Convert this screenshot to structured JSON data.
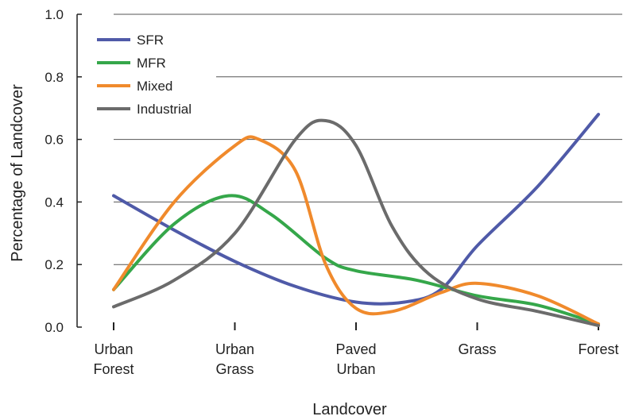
{
  "chart_data": {
    "type": "line",
    "title": "",
    "xlabel": "Landcover",
    "ylabel": "Percentage of Landcover",
    "categories": [
      [
        "Urban",
        "Forest"
      ],
      [
        "Urban",
        "Grass"
      ],
      [
        "Paved",
        "Urban"
      ],
      [
        "Grass"
      ],
      [
        "Forest"
      ]
    ],
    "ylim": [
      0,
      1.0
    ],
    "yticks": [
      "0.0",
      "0.2",
      "0.4",
      "0.6",
      "0.8",
      "1.0"
    ],
    "grid": "horizontal",
    "legend_position": "top-left",
    "series": [
      {
        "name": "SFR",
        "color": "#4f5aa8",
        "points": [
          [
            0,
            0.42
          ],
          [
            0.5,
            0.31
          ],
          [
            1,
            0.21
          ],
          [
            1.5,
            0.13
          ],
          [
            2,
            0.08
          ],
          [
            2.4,
            0.08
          ],
          [
            2.7,
            0.12
          ],
          [
            3,
            0.26
          ],
          [
            3.5,
            0.45
          ],
          [
            4,
            0.68
          ]
        ]
      },
      {
        "name": "MFR",
        "color": "#35a74a",
        "points": [
          [
            0,
            0.12
          ],
          [
            0.5,
            0.33
          ],
          [
            0.95,
            0.42
          ],
          [
            1.3,
            0.36
          ],
          [
            1.75,
            0.22
          ],
          [
            2,
            0.18
          ],
          [
            2.5,
            0.15
          ],
          [
            3,
            0.1
          ],
          [
            3.5,
            0.07
          ],
          [
            4,
            0.01
          ]
        ]
      },
      {
        "name": "Mixed",
        "color": "#f08a2c",
        "points": [
          [
            0,
            0.12
          ],
          [
            0.5,
            0.4
          ],
          [
            1,
            0.58
          ],
          [
            1.2,
            0.6
          ],
          [
            1.5,
            0.5
          ],
          [
            1.75,
            0.2
          ],
          [
            2,
            0.06
          ],
          [
            2.3,
            0.05
          ],
          [
            2.7,
            0.11
          ],
          [
            3,
            0.14
          ],
          [
            3.5,
            0.1
          ],
          [
            4,
            0.01
          ]
        ]
      },
      {
        "name": "Industrial",
        "color": "#6b6b6b",
        "points": [
          [
            0,
            0.065
          ],
          [
            0.5,
            0.15
          ],
          [
            1,
            0.3
          ],
          [
            1.5,
            0.6
          ],
          [
            1.75,
            0.66
          ],
          [
            2,
            0.58
          ],
          [
            2.3,
            0.32
          ],
          [
            2.6,
            0.17
          ],
          [
            3,
            0.09
          ],
          [
            3.5,
            0.05
          ],
          [
            4,
            0.005
          ]
        ]
      }
    ]
  }
}
